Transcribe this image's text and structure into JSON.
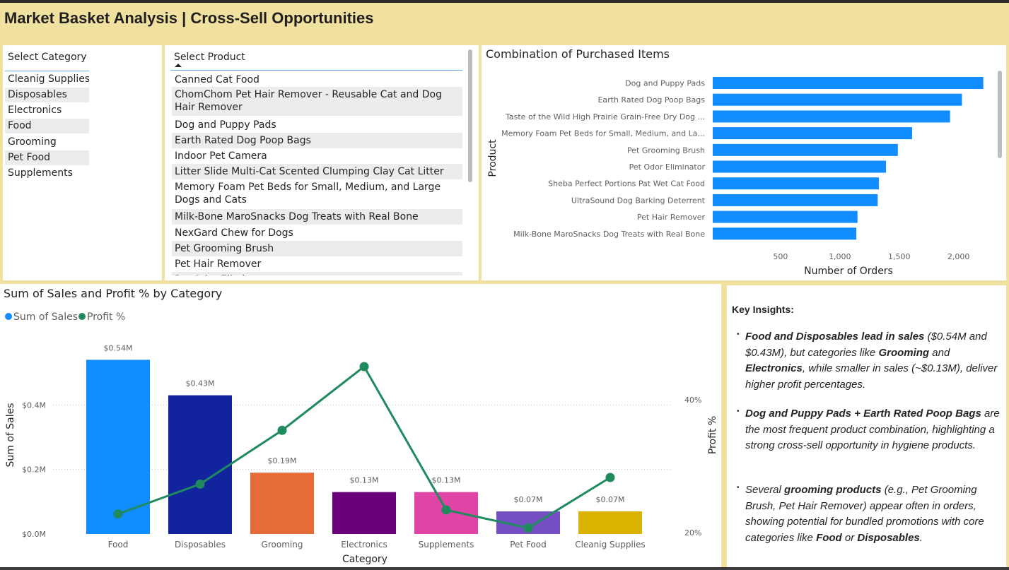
{
  "header": {
    "title": "Market Basket Analysis  | Cross-Sell Opportunities"
  },
  "category_slicer": {
    "title": "Select Category",
    "items": [
      "Cleanig Supplies",
      "Disposables",
      "Electronics",
      "Food",
      "Grooming",
      "Pet Food",
      "Supplements"
    ]
  },
  "product_slicer": {
    "title": "Select Product",
    "items": [
      "Canned Cat Food",
      "ChomChom Pet Hair Remover - Reusable Cat and Dog Hair Remover",
      "Dog and Puppy Pads",
      "Earth Rated Dog Poop Bags",
      "Indoor Pet Camera",
      "Litter Slide Multi-Cat Scented Clumping Clay Cat Litter",
      "Memory Foam Pet Beds for Small, Medium, and Large Dogs and Cats",
      "Milk-Bone MaroSnacks Dog Treats with Real Bone",
      "NexGard Chew for Dogs",
      "Pet Grooming Brush",
      "Pet Hair Remover",
      "Pet Odor Eliminator"
    ]
  },
  "chart_data": [
    {
      "type": "bar",
      "orientation": "horizontal",
      "title": "Combination of Purchased Items",
      "ylabel": "Product",
      "xlabel": "Number of Orders",
      "categories": [
        "Dog and Puppy Pads",
        "Earth Rated Dog Poop Bags",
        "Taste of the Wild High Prairie Grain-Free Dry Dog ...",
        "Memory Foam Pet Beds for Small, Medium, and La...",
        "Pet Grooming Brush",
        "Pet Odor Eliminator",
        "Sheba Perfect Portions Pat Wet Cat Food",
        "UltraSound Dog Barking Deterrent",
        "Pet Hair Remover",
        "Milk-Bone MaroSnacks Dog Treats with Real Bone"
      ],
      "values": [
        2280,
        2100,
        2000,
        1680,
        1560,
        1460,
        1400,
        1390,
        1220,
        1210
      ],
      "xticks": [
        "500",
        "1,000",
        "1,500",
        "2,000"
      ],
      "xtick_values": [
        500,
        1000,
        1500,
        2000
      ],
      "xlim": [
        0,
        2300
      ],
      "color": "#118DFF"
    },
    {
      "type": "bar",
      "title": "Sum of Sales and Profit % by Category",
      "legend": [
        "Sum of Sales",
        "Profit %"
      ],
      "legend_colors": [
        "#118DFF",
        "#1F8A5E"
      ],
      "xlabel": "Category",
      "ylabel": "Sum of Sales",
      "y2label": "Profit %",
      "categories": [
        "Food",
        "Disposables",
        "Grooming",
        "Electronics",
        "Supplements",
        "Pet Food",
        "Cleanig Supplies"
      ],
      "series": [
        {
          "name": "Sum of Sales",
          "type": "bar",
          "values": [
            0.54,
            0.43,
            0.19,
            0.13,
            0.13,
            0.07,
            0.07
          ],
          "labels": [
            "$0.54M",
            "$0.43M",
            "$0.19M",
            "$0.13M",
            "$0.13M",
            "$0.07M",
            "$0.07M"
          ],
          "colors": [
            "#118DFF",
            "#12239E",
            "#E66C37",
            "#6B007B",
            "#E044A7",
            "#744EC2",
            "#D9B300"
          ]
        },
        {
          "name": "Profit %",
          "type": "line",
          "values": [
            22.8,
            27.3,
            35.4,
            45.0,
            23.4,
            20.7,
            28.3
          ],
          "color": "#1F8A5E"
        }
      ],
      "ylim": [
        0,
        0.6
      ],
      "yticks": [
        "$0.0M",
        "$0.2M",
        "$0.4M"
      ],
      "ytick_values": [
        0,
        0.2,
        0.4
      ],
      "y2lim": [
        20,
        45
      ],
      "y2ticks": [
        "20%",
        "40%"
      ],
      "y2tick_values": [
        20,
        40
      ]
    }
  ],
  "insights": {
    "heading": "Key Insights:",
    "bullet": "•"
  }
}
